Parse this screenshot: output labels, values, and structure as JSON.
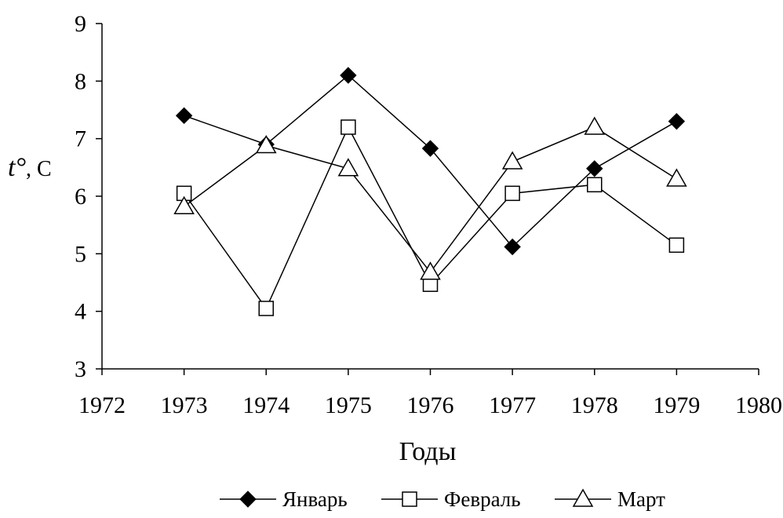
{
  "chart_data": {
    "type": "line",
    "title": "",
    "xlabel": "Годы",
    "ylabel_main": "t°",
    "ylabel_unit": ", С",
    "xlim": [
      1972,
      1980
    ],
    "ylim": [
      3,
      9
    ],
    "xticks": [
      1972,
      1973,
      1974,
      1975,
      1976,
      1977,
      1978,
      1979,
      1980
    ],
    "yticks": [
      3,
      4,
      5,
      6,
      7,
      8,
      9
    ],
    "x": [
      1973,
      1974,
      1975,
      1976,
      1977,
      1978,
      1979
    ],
    "grid": false,
    "legend_position": "bottom",
    "series": [
      {
        "name": "Январь",
        "marker": "filled-diamond",
        "color": "#000000",
        "values": [
          7.4,
          6.9,
          8.1,
          6.83,
          5.12,
          6.48,
          7.3
        ]
      },
      {
        "name": "Февраль",
        "marker": "open-square",
        "color": "#000000",
        "values": [
          6.05,
          4.05,
          7.2,
          4.47,
          6.05,
          6.2,
          5.15
        ]
      },
      {
        "name": "Март",
        "marker": "open-triangle",
        "color": "#000000",
        "values": [
          5.82,
          6.88,
          6.48,
          4.68,
          6.6,
          7.2,
          6.3
        ]
      }
    ]
  }
}
